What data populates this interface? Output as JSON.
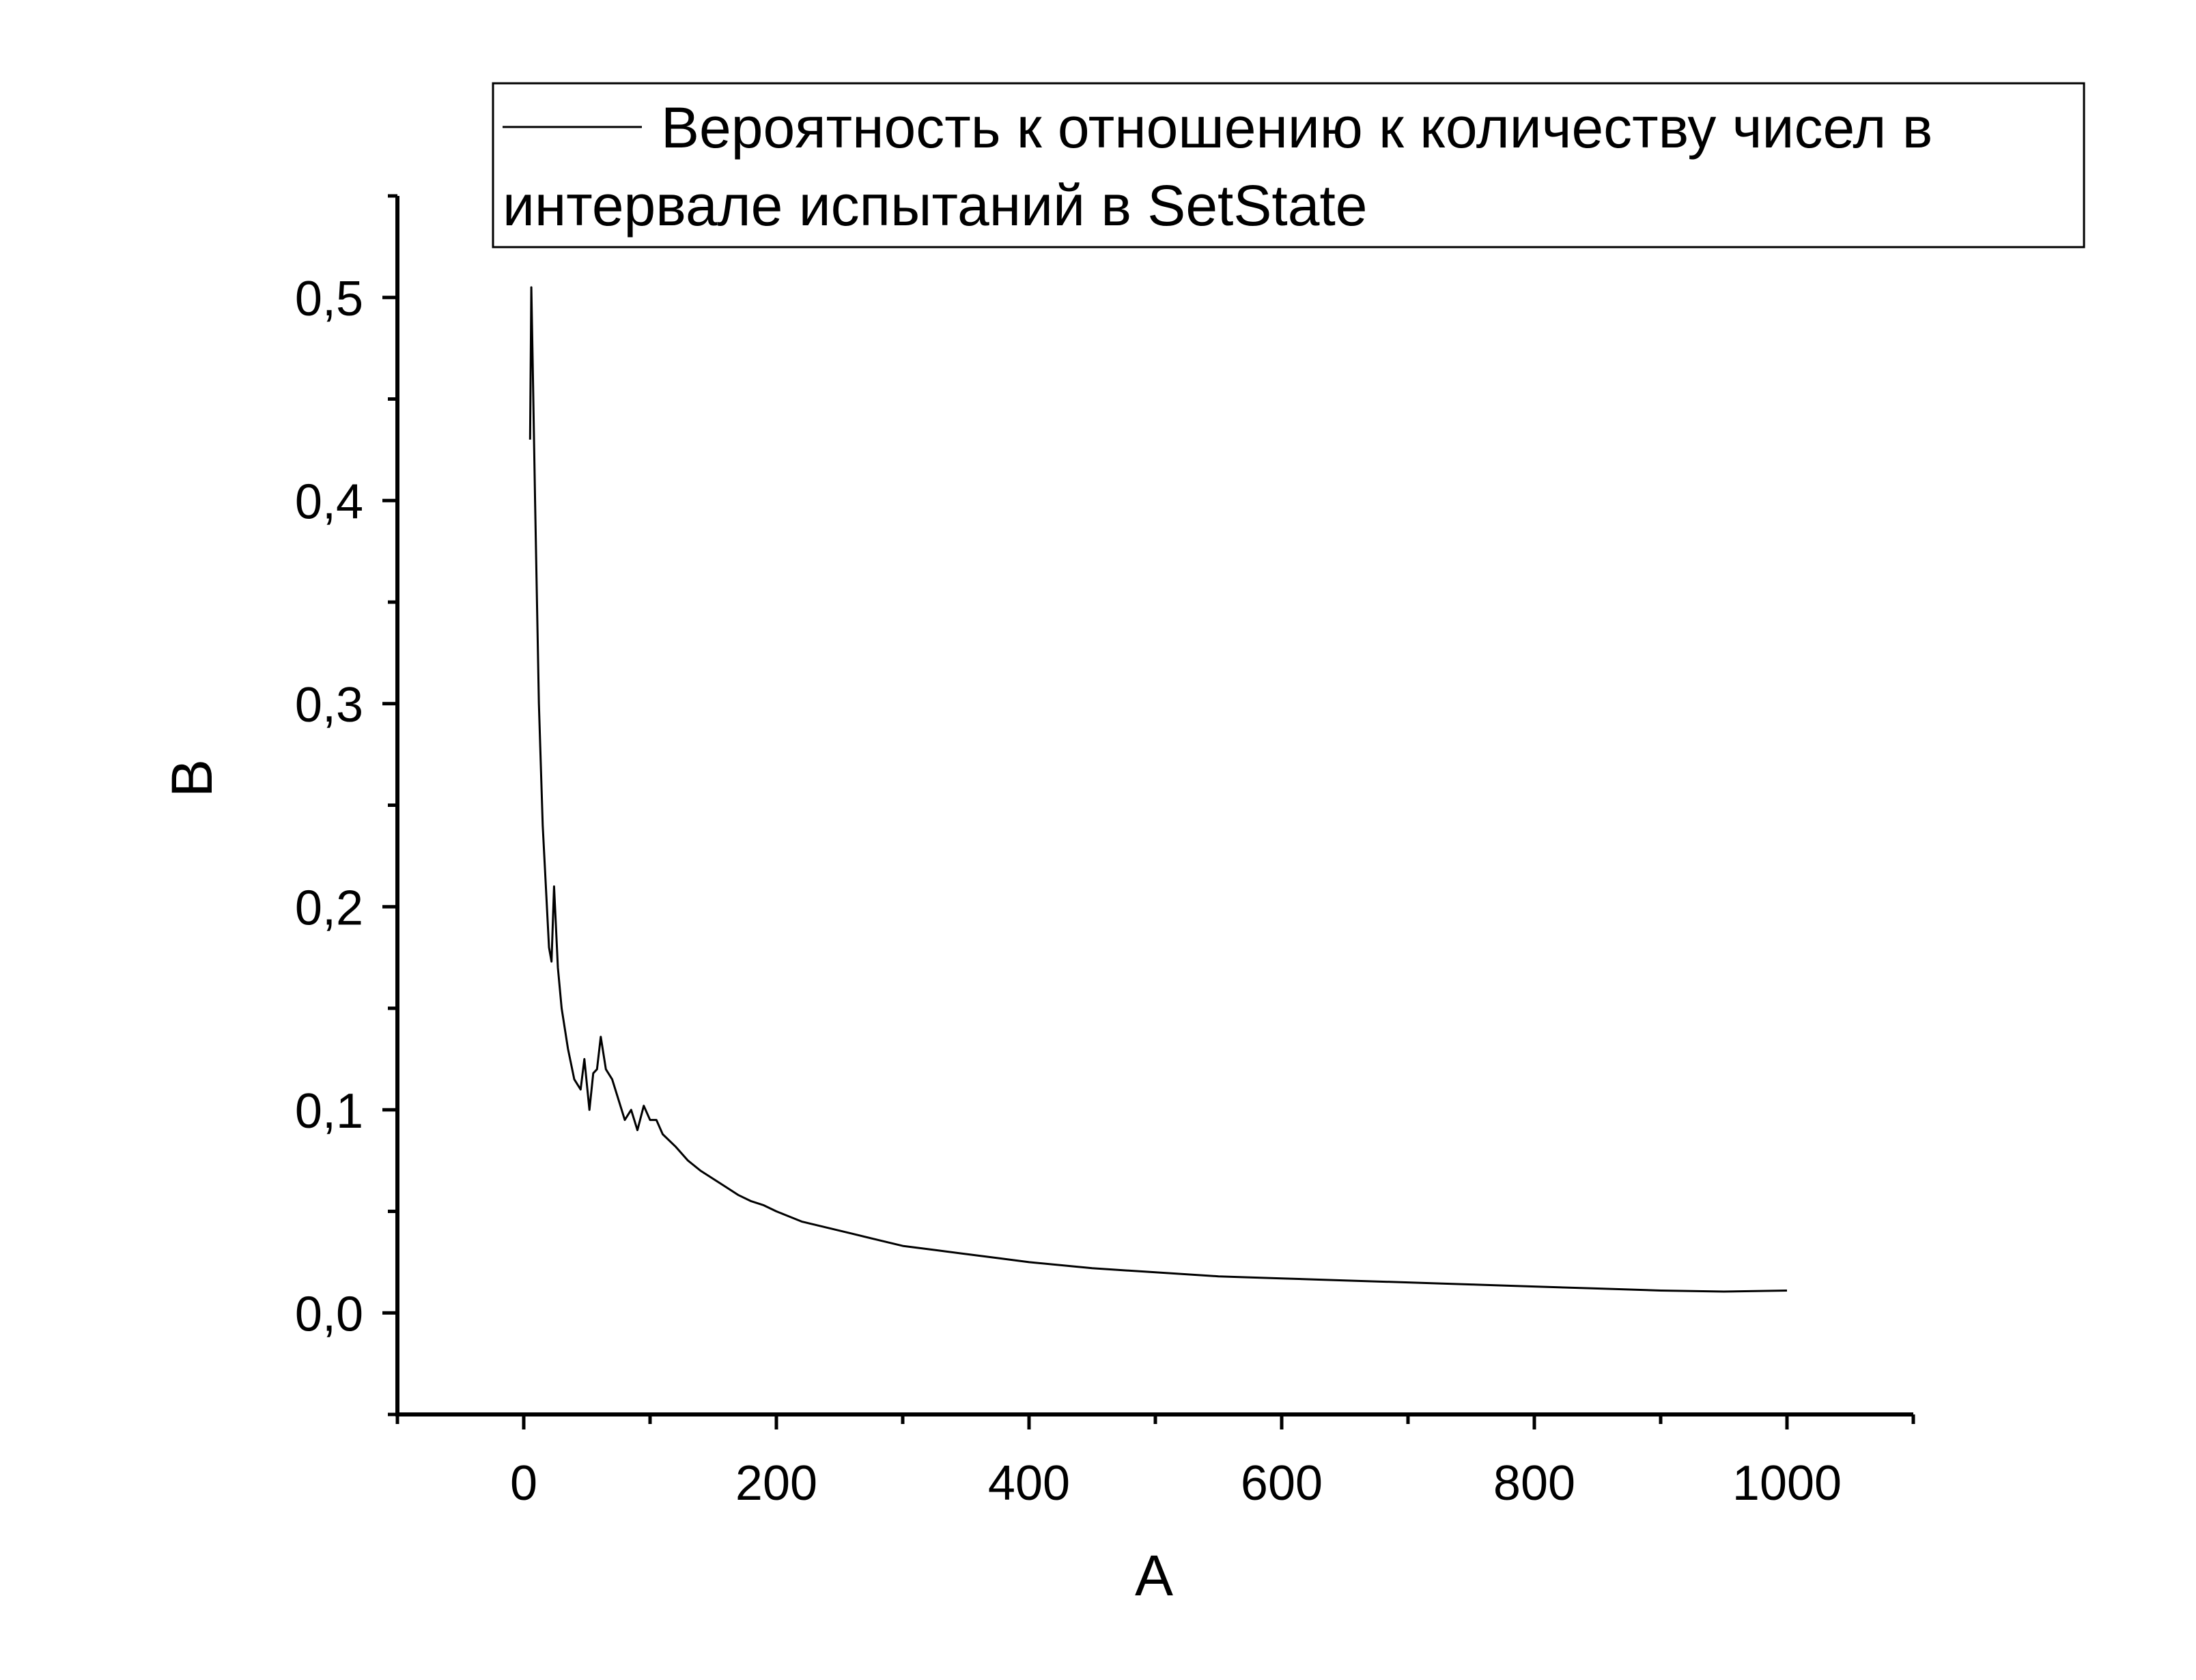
{
  "chart_data": {
    "type": "line",
    "xlabel": "A",
    "ylabel": "B",
    "xlim": [
      -100,
      1100
    ],
    "ylim": [
      -0.05,
      0.55
    ],
    "x_ticks": [
      0,
      200,
      400,
      600,
      800,
      1000
    ],
    "x_tick_labels": [
      "0",
      "200",
      "400",
      "600",
      "800",
      "1000"
    ],
    "y_ticks": [
      0.0,
      0.1,
      0.2,
      0.3,
      0.4,
      0.5
    ],
    "y_tick_labels": [
      "0,0",
      "0,1",
      "0,2",
      "0,3",
      "0,4",
      "0,5"
    ],
    "grid": false,
    "legend_position": "top",
    "series": [
      {
        "name": "Вероятность к отношению к количеству чисел в интервале испытаний в SetState",
        "color": "#000000",
        "x": [
          5,
          6,
          7,
          9,
          12,
          15,
          20,
          22,
          24,
          27,
          30,
          35,
          40,
          45,
          48,
          52,
          55,
          58,
          61,
          65,
          70,
          75,
          80,
          85,
          90,
          95,
          100,
          105,
          110,
          120,
          130,
          140,
          150,
          160,
          170,
          180,
          190,
          200,
          220,
          240,
          260,
          280,
          300,
          325,
          350,
          375,
          400,
          450,
          500,
          550,
          600,
          650,
          700,
          750,
          800,
          850,
          900,
          950,
          1000
        ],
        "y": [
          0.43,
          0.505,
          0.47,
          0.4,
          0.3,
          0.24,
          0.18,
          0.173,
          0.21,
          0.17,
          0.15,
          0.13,
          0.115,
          0.11,
          0.125,
          0.1,
          0.118,
          0.12,
          0.136,
          0.12,
          0.115,
          0.105,
          0.095,
          0.1,
          0.09,
          0.102,
          0.095,
          0.095,
          0.088,
          0.082,
          0.075,
          0.07,
          0.066,
          0.062,
          0.058,
          0.055,
          0.053,
          0.05,
          0.045,
          0.042,
          0.039,
          0.036,
          0.033,
          0.031,
          0.029,
          0.027,
          0.025,
          0.022,
          0.02,
          0.018,
          0.017,
          0.016,
          0.015,
          0.014,
          0.013,
          0.012,
          0.011,
          0.0105,
          0.011
        ]
      }
    ]
  }
}
